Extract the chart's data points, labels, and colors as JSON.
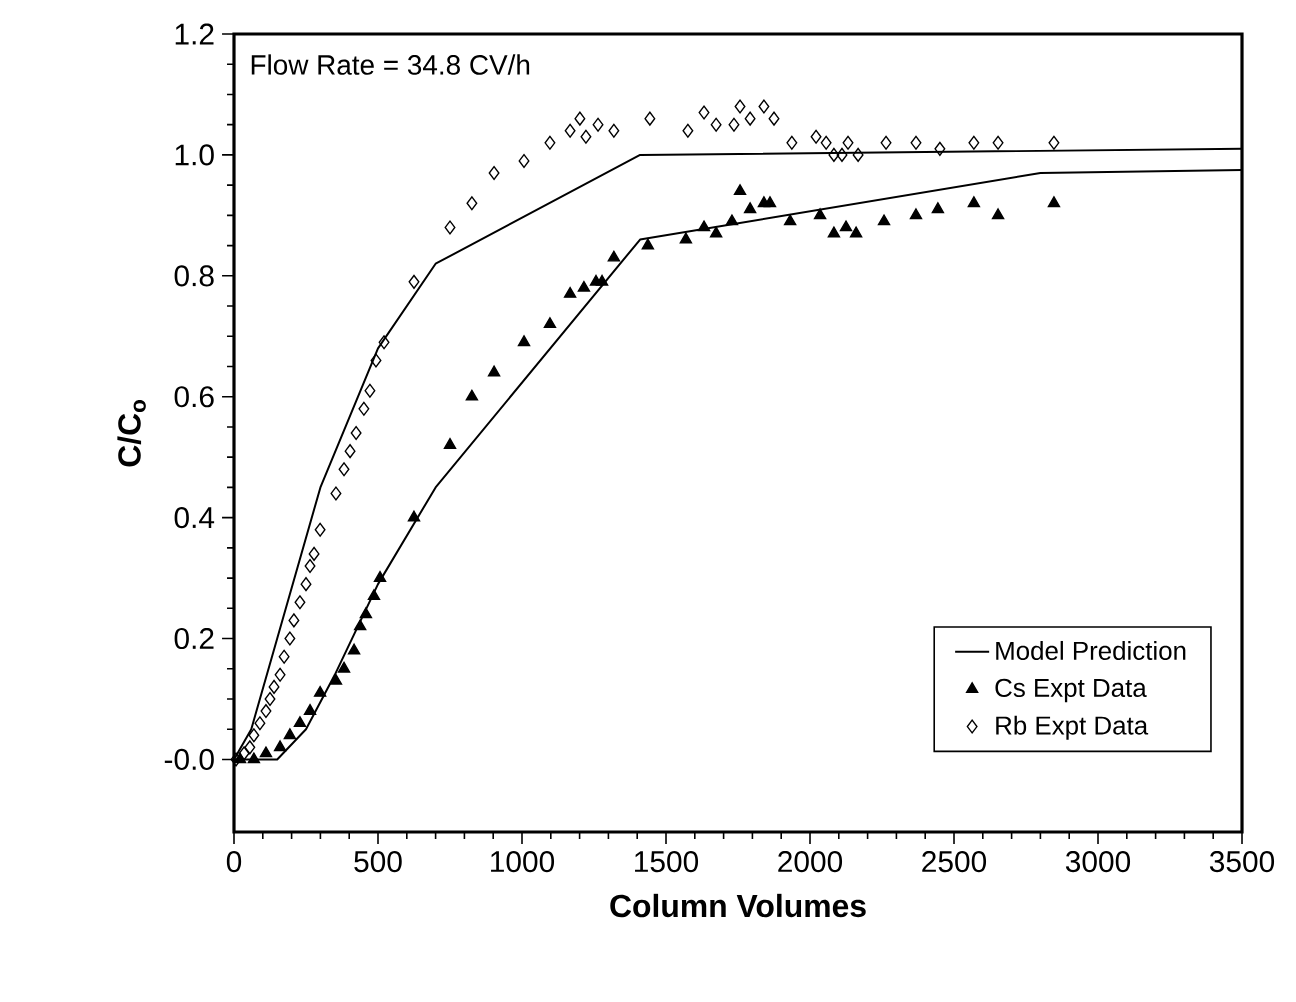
{
  "chart_data": {
    "type": "scatter",
    "xlabel": "Column Volumes",
    "ylabel": "C/C$_{o}$",
    "annotations": [
      "Flow Rate = 34.8 CV/h"
    ],
    "xlim": [
      0,
      3500
    ],
    "ylim": [
      -0.12,
      1.2
    ],
    "xticks": [
      0,
      500,
      1000,
      1500,
      2000,
      2500,
      3000,
      3500
    ],
    "yticks": [
      {
        "value": 0,
        "label": "-0.0"
      },
      {
        "value": 0.2,
        "label": "0.2"
      },
      {
        "value": 0.4,
        "label": "0.4"
      },
      {
        "value": 0.6,
        "label": "0.6"
      },
      {
        "value": 0.8,
        "label": "0.8"
      },
      {
        "value": 1,
        "label": "1.0"
      },
      {
        "value": 1.2,
        "label": "1.2"
      }
    ],
    "grid": false,
    "legend": "bottom right",
    "series": [
      {
        "name": "Model Prediction",
        "type": "line",
        "color": "#000000",
        "marker": "none",
        "line_style": "solid",
        "x": [
          0,
          150,
          250,
          350,
          500,
          700,
          1410,
          2800,
          3500
        ],
        "values": [
          0,
          0,
          0.05,
          0.14,
          0.29,
          0.45,
          0.86,
          0.97,
          0.975
        ]
      },
      {
        "type": "line",
        "color": "#000000",
        "marker": "none",
        "line_style": "solid",
        "x": [
          0,
          60,
          150,
          300,
          500,
          700,
          1410,
          3500
        ],
        "values": [
          0,
          0.05,
          0.2,
          0.45,
          0.68,
          0.82,
          1.0,
          1.01
        ]
      },
      {
        "name": "Cs Expt Data",
        "color": "#000000",
        "marker": "triangle",
        "x": [
          21,
          69,
          111,
          160,
          194,
          229,
          264,
          299,
          354,
          382,
          417,
          438,
          458,
          486,
          507,
          625,
          750,
          826,
          903,
          1007,
          1097,
          1167,
          1215,
          1257,
          1278,
          1319,
          1437,
          1569,
          1632,
          1674,
          1729,
          1757,
          1792,
          1840,
          1861,
          1931,
          2035,
          2083,
          2125,
          2160,
          2257,
          2368,
          2444,
          2569,
          2653,
          2847
        ],
        "values": [
          0,
          0,
          0.01,
          0.02,
          0.04,
          0.06,
          0.08,
          0.11,
          0.13,
          0.15,
          0.18,
          0.22,
          0.24,
          0.27,
          0.3,
          0.4,
          0.52,
          0.6,
          0.64,
          0.69,
          0.72,
          0.77,
          0.78,
          0.79,
          0.79,
          0.83,
          0.85,
          0.86,
          0.88,
          0.87,
          0.89,
          0.94,
          0.91,
          0.92,
          0.92,
          0.89,
          0.9,
          0.87,
          0.88,
          0.87,
          0.89,
          0.9,
          0.91,
          0.92,
          0.9,
          0.92
        ]
      },
      {
        "name": "Rb Expt Data",
        "color": "#000000",
        "marker": "diamond",
        "x": [
          7,
          35,
          55,
          69,
          90,
          111,
          125,
          139,
          160,
          174,
          194,
          208,
          229,
          250,
          264,
          278,
          299,
          354,
          382,
          403,
          424,
          451,
          472,
          493,
          521,
          625,
          750,
          826,
          903,
          1007,
          1097,
          1167,
          1201,
          1222,
          1264,
          1319,
          1444,
          1576,
          1632,
          1674,
          1736,
          1757,
          1792,
          1840,
          1875,
          1937,
          2021,
          2056,
          2083,
          2111,
          2132,
          2167,
          2264,
          2368,
          2451,
          2569,
          2653,
          2847
        ],
        "values": [
          0,
          0.01,
          0.02,
          0.04,
          0.06,
          0.08,
          0.1,
          0.12,
          0.14,
          0.17,
          0.2,
          0.23,
          0.26,
          0.29,
          0.32,
          0.34,
          0.38,
          0.44,
          0.48,
          0.51,
          0.54,
          0.58,
          0.61,
          0.66,
          0.69,
          0.79,
          0.88,
          0.92,
          0.97,
          0.99,
          1.02,
          1.04,
          1.06,
          1.03,
          1.05,
          1.04,
          1.06,
          1.04,
          1.07,
          1.05,
          1.05,
          1.08,
          1.06,
          1.08,
          1.06,
          1.02,
          1.03,
          1.02,
          1.0,
          1.0,
          1.02,
          1.0,
          1.02,
          1.02,
          1.01,
          1.02,
          1.02,
          1.02
        ]
      }
    ]
  }
}
